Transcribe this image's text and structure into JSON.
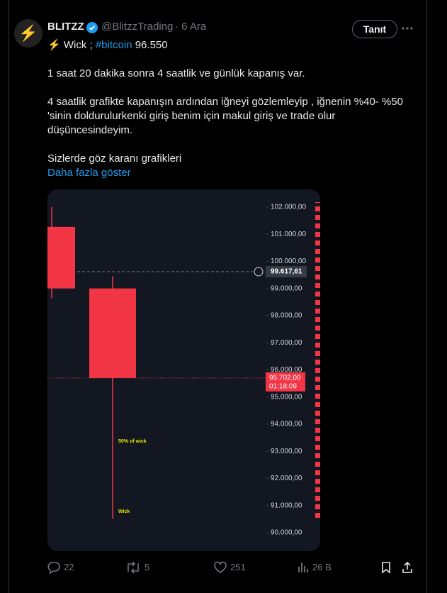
{
  "tweet": {
    "avatar": "⚡",
    "name": "BLITZZ",
    "handle": "@BlitzzTrading",
    "date": "· 6 Ara",
    "follow_button": "Tanıt",
    "lead": "⚡ Wick ;",
    "hashtag": "#bitcoin",
    "lead_tail": "96.550",
    "paragraphs": [
      "1 saat 20 dakika sonra 4 saatlik ve günlük kapanış var.",
      "4 saatlik grafikte kapanışın ardından iğneyi gözlemleyip , iğnenin %40- %50 'sinin doldurulurkenki giriş benim için makul giriş ve trade olur düşüncesindeyim.",
      "Sizlerde göz karanı grafikleri"
    ],
    "show_more": "Daha fazla göster",
    "stats": {
      "replies": "22",
      "reposts": "5",
      "likes": "251",
      "views": "26 B"
    }
  },
  "chart_data": {
    "type": "candlestick",
    "candles": {
      "open": [
        101270,
        99000
      ],
      "high": [
        102000,
        99450
      ],
      "low": [
        98630,
        90520
      ],
      "close": [
        99000,
        95700
      ]
    },
    "color": "#f23645",
    "ylim": [
      89320,
      102650
    ],
    "yticks": [
      {
        "value": 90000,
        "label": "90.000,00"
      },
      {
        "value": 91000,
        "label": "91.000,00"
      },
      {
        "value": 92000,
        "label": "92.000,00"
      },
      {
        "value": 93000,
        "label": "93.000,00"
      },
      {
        "value": 94000,
        "label": "94.000,00"
      },
      {
        "value": 95000,
        "label": "95.000,00"
      },
      {
        "value": 96000,
        "label": "96.000,00"
      },
      {
        "value": 97000,
        "label": "97.000,00"
      },
      {
        "value": 98000,
        "label": "98.000,00"
      },
      {
        "value": 99000,
        "label": "99.000,00"
      },
      {
        "value": 100000,
        "label": "100.000,00"
      },
      {
        "value": 101000,
        "label": "101.000,00"
      },
      {
        "value": 102000,
        "label": "102.000,00"
      }
    ],
    "crosshair": {
      "value": 99617.61,
      "label": "99.617,61"
    },
    "last_price": {
      "value": 95702,
      "label": "95.702,00",
      "countdown": "01:18:09"
    },
    "annotations": [
      "50% of wick",
      "Wick"
    ]
  }
}
